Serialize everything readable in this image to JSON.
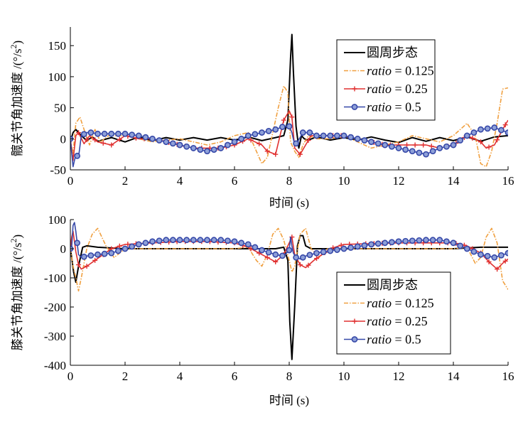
{
  "chart_data": [
    {
      "type": "line",
      "xlabel": "时间 (s)",
      "ylabel": "髋关节角加速度 /(°/s²)",
      "ylabel_main": "髋关节角加速度 /(°/s",
      "ylabel_sup": "2",
      "ylabel_end": ")",
      "xlim": [
        0,
        16
      ],
      "ylim": [
        -50,
        180
      ],
      "xticks": [
        0,
        2,
        4,
        6,
        8,
        10,
        12,
        14,
        16
      ],
      "yticks": [
        -50,
        0,
        50,
        100,
        150
      ],
      "grid": false,
      "legend_position": "top-right",
      "series": [
        {
          "name": "圆周步态",
          "name_italic": "",
          "name_rest": "圆周步态",
          "color": "#000000",
          "marker": "none",
          "dash": "solid",
          "x": [
            0,
            0.1,
            0.2,
            0.4,
            0.6,
            0.8,
            1,
            1.5,
            2,
            2.5,
            3,
            3.5,
            4,
            4.5,
            5,
            5.5,
            6,
            6.5,
            7,
            7.5,
            7.8,
            7.95,
            8.05,
            8.1,
            8.15,
            8.25,
            8.35,
            8.45,
            8.55,
            8.7,
            9,
            9.5,
            10,
            10.5,
            11,
            11.5,
            12,
            12.5,
            13,
            13.5,
            14,
            14.5,
            15,
            15.5,
            16
          ],
          "y": [
            -5,
            10,
            15,
            5,
            -3,
            3,
            -4,
            2,
            -5,
            3,
            -3,
            2,
            -2,
            2,
            -2,
            2,
            -2,
            3,
            -3,
            2,
            5,
            30,
            130,
            168,
            110,
            20,
            -15,
            5,
            0,
            -2,
            3,
            -2,
            2,
            -2,
            3,
            -2,
            -6,
            2,
            -4,
            2,
            -3,
            3,
            -4,
            3,
            5
          ]
        },
        {
          "name": "ratio = 0.125",
          "name_italic": "ratio",
          "name_rest": " = 0.125",
          "color": "#f0a040",
          "marker": "none",
          "dash": "dashdot",
          "x": [
            0,
            0.1,
            0.2,
            0.35,
            0.5,
            0.7,
            0.9,
            1.1,
            1.4,
            2,
            2.5,
            3,
            3.5,
            4,
            4.5,
            5,
            5.5,
            6,
            6.5,
            6.8,
            7,
            7.2,
            7.4,
            7.6,
            7.8,
            7.95,
            8.05,
            8.2,
            8.35,
            8.5,
            8.7,
            9,
            9.5,
            10,
            10.5,
            11,
            11.5,
            12,
            12.5,
            13,
            13.5,
            14,
            14.5,
            14.8,
            15,
            15.2,
            15.4,
            15.6,
            15.8,
            16
          ],
          "y": [
            0,
            -25,
            25,
            35,
            15,
            -10,
            15,
            -5,
            5,
            5,
            0,
            -5,
            -2,
            0,
            -5,
            -10,
            -5,
            5,
            10,
            -20,
            -40,
            -30,
            10,
            50,
            85,
            75,
            -5,
            -20,
            -30,
            -10,
            5,
            0,
            0,
            5,
            -5,
            -15,
            -10,
            -5,
            5,
            0,
            -5,
            5,
            25,
            5,
            -40,
            -45,
            -20,
            25,
            80,
            82
          ]
        },
        {
          "name": "ratio = 0.25",
          "name_italic": "ratio",
          "name_rest": " = 0.25",
          "color": "#e03030",
          "marker": "plus",
          "dash": "solid",
          "x": [
            0,
            0.1,
            0.2,
            0.3,
            0.5,
            0.7,
            1,
            1.5,
            2,
            2.5,
            3,
            3.5,
            4,
            4.5,
            5,
            5.5,
            6,
            6.5,
            7,
            7.2,
            7.5,
            7.8,
            8,
            8.1,
            8.2,
            8.4,
            8.6,
            8.8,
            9,
            9.5,
            10,
            10.5,
            11,
            11.5,
            12,
            12.5,
            13,
            13.5,
            14,
            14.5,
            15,
            15.2,
            15.5,
            15.8,
            16
          ],
          "y": [
            0,
            -35,
            5,
            10,
            -8,
            5,
            -5,
            -10,
            5,
            0,
            0,
            -5,
            -10,
            -15,
            -15,
            -15,
            -10,
            0,
            -10,
            -20,
            -25,
            30,
            45,
            35,
            -15,
            -25,
            -10,
            5,
            5,
            5,
            5,
            0,
            -5,
            -10,
            -10,
            -10,
            -10,
            -15,
            -10,
            5,
            -5,
            -15,
            -10,
            15,
            30
          ]
        },
        {
          "name": "ratio = 0.5",
          "name_italic": "ratio",
          "name_rest": " = 0.5",
          "color": "#3648a8",
          "marker": "circle",
          "dash": "solid",
          "x": [
            0,
            0.1,
            0.2,
            0.3,
            0.4,
            0.6,
            0.8,
            1,
            1.5,
            2,
            2.5,
            3,
            3.5,
            4,
            4.5,
            5,
            5.5,
            6,
            6.5,
            7,
            7.5,
            7.8,
            8,
            8.1,
            8.2,
            8.3,
            8.5,
            8.8,
            9,
            9.5,
            10,
            10.5,
            11,
            11.5,
            12,
            12.5,
            13,
            13.5,
            14,
            14.5,
            15,
            15.5,
            16
          ],
          "y": [
            0,
            -45,
            -25,
            -30,
            5,
            10,
            10,
            8,
            8,
            8,
            5,
            0,
            -5,
            -10,
            -15,
            -20,
            -15,
            -5,
            5,
            10,
            15,
            20,
            20,
            10,
            -10,
            -5,
            10,
            10,
            5,
            5,
            5,
            0,
            -5,
            -10,
            -15,
            -20,
            -25,
            -15,
            -10,
            5,
            15,
            18,
            10
          ]
        }
      ]
    },
    {
      "type": "line",
      "xlabel": "时间 (s)",
      "ylabel": "膝关节角加速度 /(°/s²)",
      "ylabel_main": "膝关节角加速度 /(°/s",
      "ylabel_sup": "2",
      "ylabel_end": ")",
      "xlim": [
        0,
        16
      ],
      "ylim": [
        -400,
        100
      ],
      "xticks": [
        0,
        2,
        4,
        6,
        8,
        10,
        12,
        14,
        16
      ],
      "yticks": [
        -400,
        -300,
        -200,
        -100,
        0,
        100
      ],
      "grid": false,
      "legend_position": "bottom-right",
      "series": [
        {
          "name": "圆周步态",
          "name_italic": "",
          "name_rest": "圆周步态",
          "color": "#000000",
          "marker": "none",
          "dash": "solid",
          "x": [
            0,
            0.05,
            0.12,
            0.2,
            0.3,
            0.45,
            0.6,
            1,
            2,
            3,
            4,
            5,
            6,
            7,
            7.5,
            7.8,
            7.95,
            8.02,
            8.1,
            8.2,
            8.3,
            8.4,
            8.5,
            8.6,
            8.8,
            9.5,
            10,
            12,
            14,
            15,
            16
          ],
          "y": [
            0,
            -30,
            -80,
            -115,
            -60,
            5,
            10,
            5,
            0,
            0,
            0,
            0,
            0,
            0,
            0,
            5,
            -40,
            -250,
            -380,
            -200,
            10,
            45,
            45,
            10,
            0,
            0,
            0,
            0,
            0,
            5,
            5
          ]
        },
        {
          "name": "ratio = 0.125",
          "name_italic": "ratio",
          "name_rest": " = 0.125",
          "color": "#f0a040",
          "marker": "none",
          "dash": "dashdot",
          "x": [
            0,
            0.1,
            0.2,
            0.3,
            0.4,
            0.6,
            0.8,
            1,
            1.3,
            1.6,
            2,
            3,
            4,
            5,
            6,
            6.5,
            6.8,
            7,
            7.2,
            7.4,
            7.6,
            7.8,
            8,
            8.1,
            8.2,
            8.4,
            8.6,
            8.8,
            9.1,
            9.4,
            10,
            12,
            14,
            14.5,
            14.8,
            15,
            15.2,
            15.4,
            15.6,
            15.8,
            16
          ],
          "y": [
            0,
            -60,
            -100,
            -145,
            -100,
            0,
            50,
            70,
            10,
            -30,
            0,
            0,
            0,
            0,
            0,
            5,
            -40,
            -60,
            -20,
            50,
            70,
            30,
            -40,
            -80,
            -60,
            50,
            70,
            0,
            -30,
            0,
            0,
            0,
            0,
            5,
            -50,
            -30,
            40,
            70,
            20,
            -110,
            -140
          ]
        },
        {
          "name": "ratio = 0.25",
          "name_italic": "ratio",
          "name_rest": " = 0.25",
          "color": "#e03030",
          "marker": "plus",
          "dash": "solid",
          "x": [
            0,
            0.05,
            0.1,
            0.2,
            0.3,
            0.4,
            0.6,
            0.9,
            1.2,
            1.5,
            2,
            3,
            4,
            5,
            6,
            6.5,
            7,
            7.5,
            7.8,
            8,
            8.1,
            8.2,
            8.4,
            8.6,
            8.9,
            9.2,
            9.5,
            10,
            12,
            14,
            14.5,
            15,
            15.3,
            15.6,
            15.8,
            16
          ],
          "y": [
            0,
            40,
            60,
            -10,
            -55,
            -70,
            -60,
            -40,
            -20,
            0,
            15,
            20,
            25,
            25,
            20,
            5,
            -20,
            -45,
            -20,
            20,
            40,
            -20,
            -55,
            -65,
            -40,
            -20,
            0,
            15,
            20,
            20,
            10,
            -15,
            -45,
            -70,
            -50,
            -35
          ]
        },
        {
          "name": "ratio = 0.5",
          "name_italic": "ratio",
          "name_rest": " = 0.5",
          "color": "#3648a8",
          "marker": "circle",
          "dash": "solid",
          "x": [
            0,
            0.05,
            0.1,
            0.15,
            0.2,
            0.3,
            0.4,
            0.6,
            1,
            1.5,
            2,
            2.5,
            3,
            3.5,
            4,
            4.5,
            5,
            5.5,
            6,
            6.5,
            7,
            7.5,
            7.8,
            8,
            8.05,
            8.1,
            8.15,
            8.25,
            8.4,
            8.6,
            9,
            10,
            11,
            12,
            13,
            13.5,
            14,
            14.5,
            15,
            15.5,
            16
          ],
          "y": [
            0,
            5,
            80,
            90,
            60,
            -20,
            -30,
            -25,
            -20,
            -15,
            0,
            15,
            25,
            30,
            30,
            30,
            30,
            30,
            25,
            15,
            -5,
            -20,
            -25,
            -5,
            40,
            10,
            -15,
            -30,
            -35,
            -25,
            -15,
            0,
            15,
            25,
            30,
            30,
            20,
            0,
            -20,
            -30,
            -15
          ]
        }
      ]
    }
  ]
}
